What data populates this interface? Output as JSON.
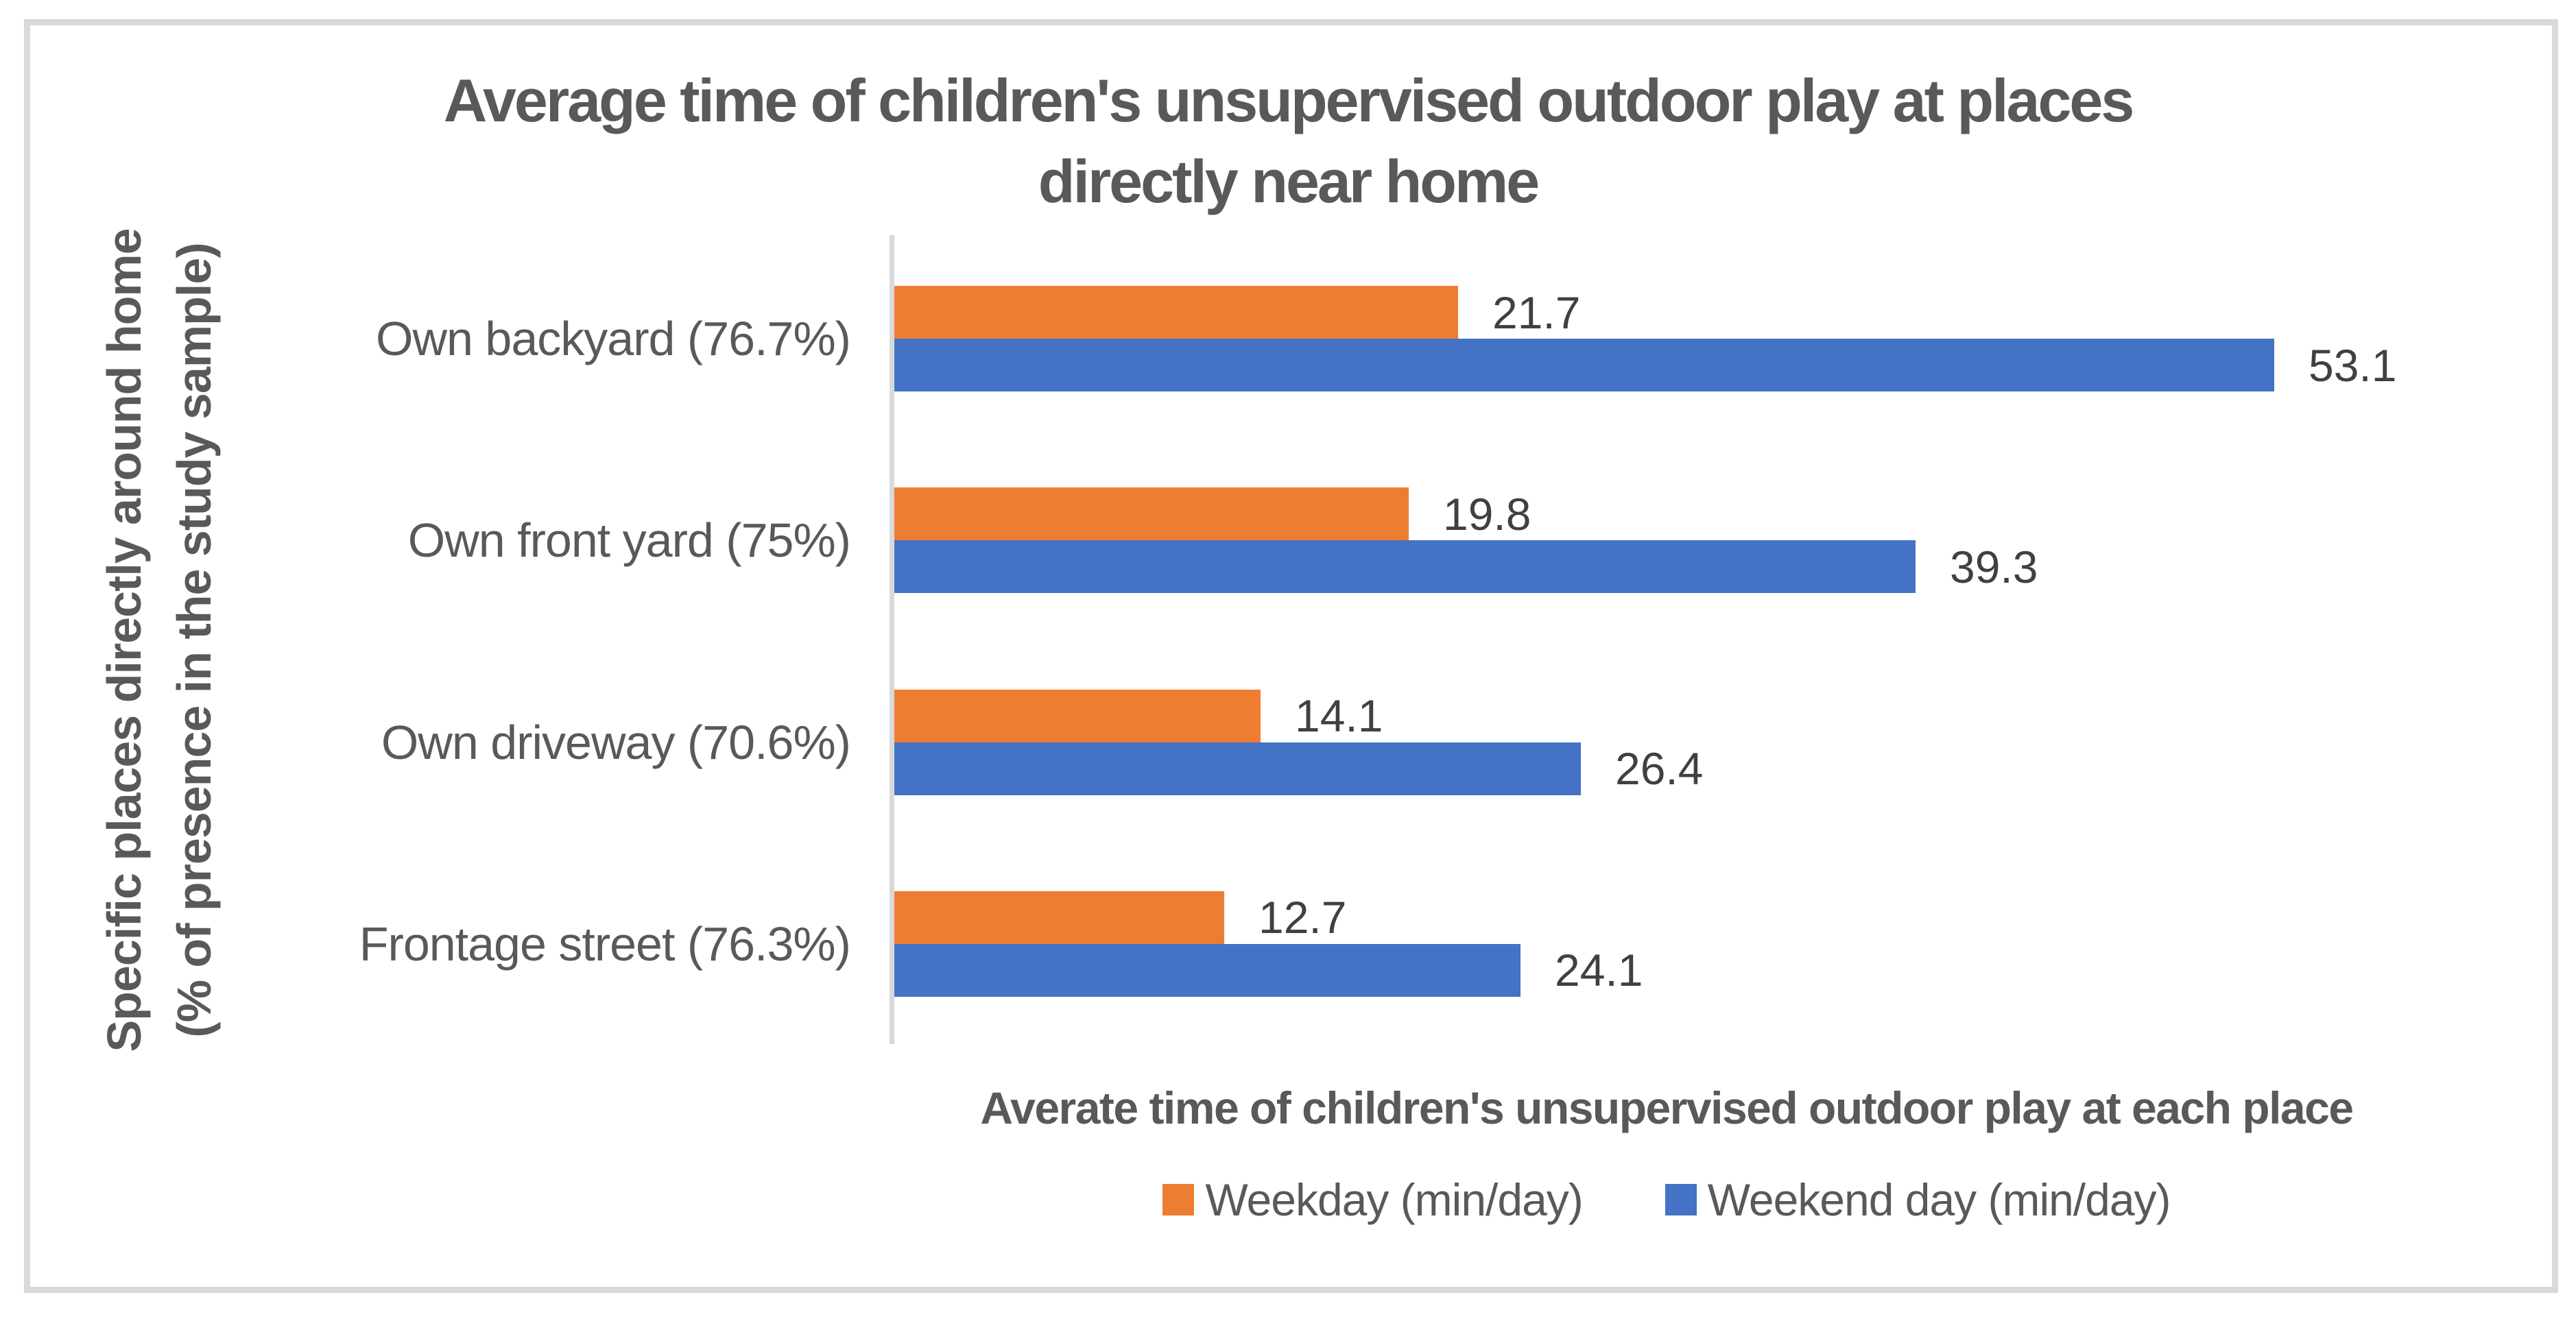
{
  "chart_data": {
    "type": "bar",
    "orientation": "horizontal",
    "title_line1": "Average time of children's unsupervised outdoor play at places",
    "title_line2": "directly near home",
    "categories": [
      "Own backyard (76.7%)",
      "Own front yard (75%)",
      "Own driveway (70.6%)",
      "Frontage street (76.3%)"
    ],
    "series": [
      {
        "name": "Weekday (min/day)",
        "color": "#ED7D31",
        "values": [
          21.7,
          19.8,
          14.1,
          12.7
        ]
      },
      {
        "name": "Weekend day (min/day)",
        "color": "#4472C4",
        "values": [
          53.1,
          39.3,
          26.4,
          24.1
        ]
      }
    ],
    "xlabel": "Averate time of children's unsupervised outdoor play at each place",
    "ylabel_line1": "Specific places directly around home",
    "ylabel_line2": "(% of presence in the study sample)",
    "xlim": [
      0,
      60
    ],
    "grid": false,
    "legend_position": "bottom",
    "data_labels": true
  },
  "colors": {
    "frame_and_axis": "#D9D9D9",
    "title_text": "#595959",
    "axis_text": "#595959",
    "data_label_text": "#404040",
    "weekday_bar": "#ED7D31",
    "weekend_bar": "#4472C4",
    "background": "#FFFFFF"
  }
}
